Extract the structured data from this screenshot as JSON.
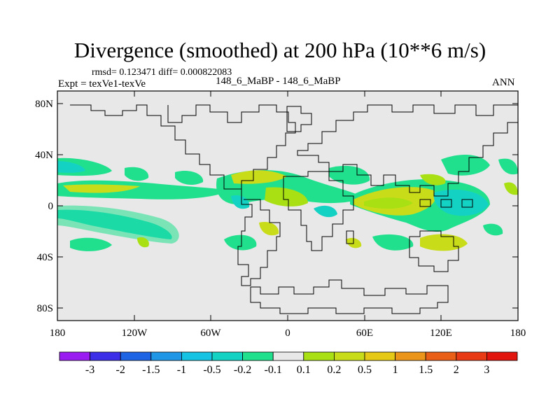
{
  "header": {
    "title": "Divergence (smoothed) at 200 hPa (10**6 m/s)",
    "stats": "rmsd= 0.123471 diff= 0.000822083",
    "experiment": "Expt = texVe1-texVe",
    "subtitle": "148_6_MaBP - 148_6_MaBP",
    "season": "ANN"
  },
  "axes": {
    "y_labels": [
      "80N",
      "40N",
      "0",
      "40S",
      "80S"
    ],
    "x_labels": [
      "180",
      "120W",
      "60W",
      "0",
      "60E",
      "120E",
      "180"
    ]
  },
  "colorbar": {
    "labels": [
      "-3",
      "-2",
      "-1.5",
      "-1",
      "-0.5",
      "-0.2",
      "-0.1",
      "0.1",
      "0.2",
      "0.5",
      "1",
      "1.5",
      "2",
      "3"
    ],
    "colors": [
      "#9b1cf0",
      "#3d2ee8",
      "#1c64e4",
      "#1f96e6",
      "#17c3e3",
      "#14d2c3",
      "#20e08e",
      "#e8e8e8",
      "#a8e014",
      "#c9dc1a",
      "#e6c816",
      "#eb951a",
      "#ea5f18",
      "#e83a14",
      "#e2140e"
    ]
  },
  "palette": {
    "background": "#e8e8e8",
    "neg_weak": "#20e08e",
    "neg_mid": "#14d2c3",
    "pos_weak": "#a8e014",
    "pos_mid": "#c9dc1a"
  }
}
